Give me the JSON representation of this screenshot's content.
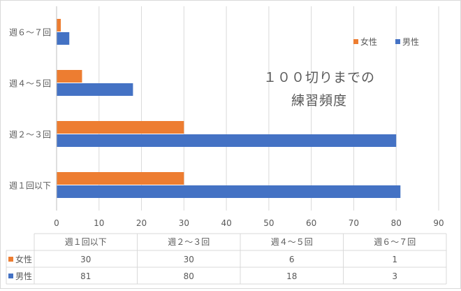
{
  "chart_data": {
    "type": "bar",
    "orientation": "horizontal",
    "title": "１００切りまでの\n練習頻度",
    "categories": [
      "週１回以下",
      "週２～３回",
      "週４～５回",
      "週６～７回"
    ],
    "series": [
      {
        "name": "女性",
        "color": "#ed7d31",
        "values": [
          30,
          30,
          6,
          1
        ]
      },
      {
        "name": "男性",
        "color": "#4472c4",
        "values": [
          81,
          80,
          18,
          3
        ]
      }
    ],
    "x_ticks": [
      0,
      10,
      20,
      30,
      40,
      50,
      60,
      70,
      80,
      90
    ],
    "xlim": [
      0,
      90
    ],
    "grid": true,
    "legend_position": "top-right",
    "data_table": true
  }
}
